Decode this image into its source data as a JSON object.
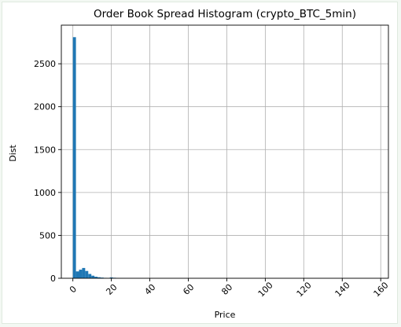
{
  "chart_data": {
    "type": "bar",
    "title": "Order Book Spread Histogram (crypto_BTC_5min)",
    "xlabel": "Price",
    "ylabel": "Dist",
    "xlim": [
      -6,
      164
    ],
    "ylim": [
      0,
      2950
    ],
    "xticks": [
      0,
      20,
      40,
      60,
      80,
      100,
      120,
      140,
      160
    ],
    "yticks": [
      0,
      500,
      1000,
      1500,
      2000,
      2500
    ],
    "grid": true,
    "bar_color": "#1f77b4",
    "bins": [
      {
        "x0": 0.0,
        "x1": 1.6,
        "count": 2810
      },
      {
        "x0": 1.6,
        "x1": 3.2,
        "count": 80
      },
      {
        "x0": 3.2,
        "x1": 4.8,
        "count": 100
      },
      {
        "x0": 4.8,
        "x1": 6.4,
        "count": 120
      },
      {
        "x0": 6.4,
        "x1": 8.0,
        "count": 85
      },
      {
        "x0": 8.0,
        "x1": 9.6,
        "count": 50
      },
      {
        "x0": 9.6,
        "x1": 11.2,
        "count": 30
      },
      {
        "x0": 11.2,
        "x1": 12.8,
        "count": 18
      },
      {
        "x0": 12.8,
        "x1": 14.4,
        "count": 12
      },
      {
        "x0": 14.4,
        "x1": 16.0,
        "count": 8
      },
      {
        "x0": 16.0,
        "x1": 17.6,
        "count": 5
      },
      {
        "x0": 17.6,
        "x1": 19.2,
        "count": 4
      },
      {
        "x0": 19.2,
        "x1": 20.8,
        "count": 10
      },
      {
        "x0": 20.8,
        "x1": 22.4,
        "count": 6
      },
      {
        "x0": 22.4,
        "x1": 24.0,
        "count": 3
      },
      {
        "x0": 24.0,
        "x1": 25.6,
        "count": 2
      },
      {
        "x0": 25.6,
        "x1": 27.2,
        "count": 2
      },
      {
        "x0": 27.2,
        "x1": 28.8,
        "count": 1
      },
      {
        "x0": 28.8,
        "x1": 30.4,
        "count": 1
      },
      {
        "x0": 30.4,
        "x1": 32.0,
        "count": 1
      },
      {
        "x0": 32.0,
        "x1": 33.6,
        "count": 1
      },
      {
        "x0": 33.6,
        "x1": 35.2,
        "count": 1
      }
    ]
  }
}
